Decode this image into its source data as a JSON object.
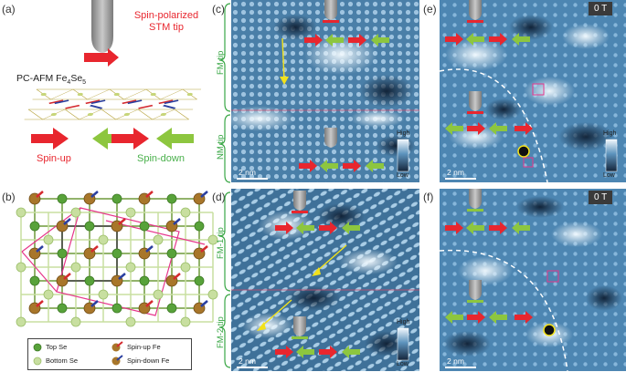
{
  "panels": {
    "a": {
      "label": "(a)",
      "tip_text_line1": "Spin-polarized",
      "tip_text_line2": "STM tip",
      "material_prefix": "PC-AFM Fe",
      "material_sub1": "4",
      "material_mid": "Se",
      "material_sub2": "5",
      "spin_up": "Spin-up",
      "spin_down": "Spin-down"
    },
    "b": {
      "label": "(b)",
      "legend": {
        "top_se": "Top Se",
        "bottom_se": "Bottom Se",
        "spin_up_fe": "Spin-up Fe",
        "spin_down_fe": "Spin-down Fe"
      }
    },
    "c": {
      "label": "(c)",
      "tip_top": "FM tip",
      "tip_bottom": "NM tip",
      "scale": "2 nm",
      "cb_high": "High",
      "cb_low": "Low"
    },
    "d": {
      "label": "(d)",
      "tip_top": "FM-1 tip",
      "tip_bottom": "FM-2 tip",
      "scale": "2 nm",
      "cb_high": "High",
      "cb_low": "Low"
    },
    "e": {
      "label": "(e)",
      "field": "0 T",
      "scale": "2 nm",
      "cb_high": "High",
      "cb_low": "Low"
    },
    "f": {
      "label": "(f)",
      "field": "0 T",
      "scale": "2 nm"
    }
  },
  "colors": {
    "spin_up": "#e8262e",
    "spin_down": "#8dc63f",
    "stm_dark": "#1e3a58",
    "stm_mid": "#4f85ad",
    "stm_light": "#e9f3fb",
    "label_green": "#3aa746"
  }
}
